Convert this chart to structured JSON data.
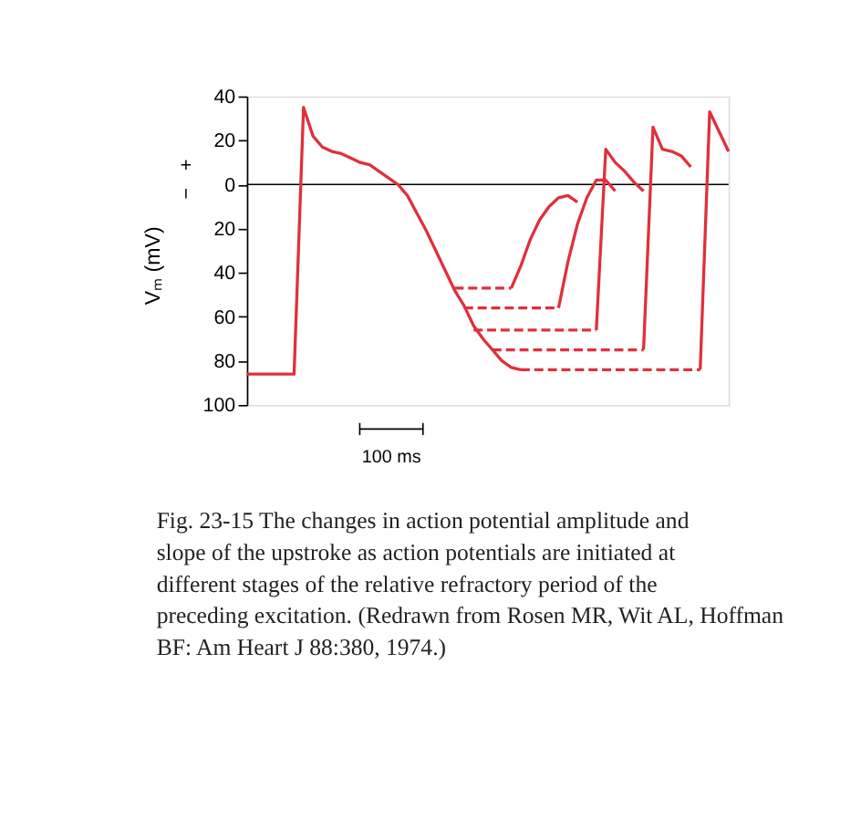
{
  "chart_data": {
    "type": "line",
    "ylabel": "Vₘ (mV)",
    "ylim": [
      -100,
      40
    ],
    "categories": [
      null,
      null,
      null,
      null,
      null,
      null,
      null,
      null,
      null,
      null,
      null,
      null,
      null,
      null,
      null,
      null,
      null,
      null,
      null,
      null,
      null,
      null,
      null,
      null,
      null,
      null,
      null,
      null,
      null,
      null,
      null,
      null,
      null,
      null,
      null,
      null,
      null,
      null,
      null,
      null,
      null,
      null,
      null,
      null,
      null,
      null,
      null,
      null,
      null,
      null,
      null,
      null
    ],
    "yticks": [
      40,
      20,
      0,
      {
        "value": -20,
        "label": "20"
      },
      {
        "value": -40,
        "label": "40"
      },
      {
        "value": -60,
        "label": "60"
      },
      {
        "value": -80,
        "label": "80"
      },
      {
        "value": -100,
        "label": "100"
      }
    ],
    "tick_labels": "y",
    "grid": false,
    "marker": "none",
    "ref_lines": [
      {
        "axis": "y",
        "value": 0,
        "color": "#000000"
      }
    ],
    "series": [
      {
        "color": "#e0303c",
        "line_style": "solid",
        "values": [
          -86,
          -86,
          -86,
          -86,
          -86,
          -86,
          35,
          22,
          17,
          15,
          14,
          12,
          10,
          9,
          6,
          3,
          0,
          -5,
          -13,
          -21,
          -30,
          -39,
          -48,
          -55,
          -64,
          -70,
          -75,
          -80,
          -83,
          -84,
          null,
          null,
          null,
          null,
          null,
          null,
          null,
          null,
          null,
          null,
          null,
          null,
          null,
          null,
          null,
          null,
          null,
          null,
          null,
          null,
          null,
          null
        ]
      },
      {
        "color": "#e0303c",
        "line_style": "dashed",
        "values": [
          null,
          null,
          null,
          null,
          null,
          null,
          null,
          null,
          null,
          null,
          null,
          null,
          null,
          null,
          null,
          null,
          null,
          null,
          null,
          null,
          null,
          null,
          -47,
          -47,
          -47,
          -47,
          -47,
          -47,
          -47,
          null,
          null,
          null,
          null,
          null,
          null,
          null,
          null,
          null,
          null,
          null,
          null,
          null,
          null,
          null,
          null,
          null,
          null,
          null,
          null,
          null,
          null,
          null
        ]
      },
      {
        "color": "#e0303c",
        "line_style": "dashed",
        "values": [
          null,
          null,
          null,
          null,
          null,
          null,
          null,
          null,
          null,
          null,
          null,
          null,
          null,
          null,
          null,
          null,
          null,
          null,
          null,
          null,
          null,
          null,
          null,
          -56,
          -56,
          -56,
          -56,
          -56,
          -56,
          -56,
          -56,
          -56,
          -56,
          -56,
          null,
          null,
          null,
          null,
          null,
          null,
          null,
          null,
          null,
          null,
          null,
          null,
          null,
          null,
          null,
          null,
          null,
          null
        ]
      },
      {
        "color": "#e0303c",
        "line_style": "dashed",
        "values": [
          null,
          null,
          null,
          null,
          null,
          null,
          null,
          null,
          null,
          null,
          null,
          null,
          null,
          null,
          null,
          null,
          null,
          null,
          null,
          null,
          null,
          null,
          null,
          null,
          -66,
          -66,
          -66,
          -66,
          -66,
          -66,
          -66,
          -66,
          -66,
          -66,
          -66,
          -66,
          -66,
          -66,
          null,
          null,
          null,
          null,
          null,
          null,
          null,
          null,
          null,
          null,
          null,
          null,
          null,
          null
        ]
      },
      {
        "color": "#e0303c",
        "line_style": "dashed",
        "values": [
          null,
          null,
          null,
          null,
          null,
          null,
          null,
          null,
          null,
          null,
          null,
          null,
          null,
          null,
          null,
          null,
          null,
          null,
          null,
          null,
          null,
          null,
          null,
          null,
          null,
          null,
          -75,
          -75,
          -75,
          -75,
          -75,
          -75,
          -75,
          -75,
          -75,
          -75,
          -75,
          -75,
          -75,
          -75,
          -75,
          -75,
          -75,
          null,
          null,
          null,
          null,
          null,
          null,
          null,
          null,
          null
        ]
      },
      {
        "color": "#e0303c",
        "line_style": "dashed",
        "values": [
          null,
          null,
          null,
          null,
          null,
          null,
          null,
          null,
          null,
          null,
          null,
          null,
          null,
          null,
          null,
          null,
          null,
          null,
          null,
          null,
          null,
          null,
          null,
          null,
          null,
          null,
          null,
          null,
          null,
          -84,
          -84,
          -84,
          -84,
          -84,
          -84,
          -84,
          -84,
          -84,
          -84,
          -84,
          -84,
          -84,
          -84,
          -84,
          -84,
          -84,
          -84,
          -84,
          -84,
          null,
          null,
          null
        ]
      },
      {
        "color": "#e0303c",
        "line_style": "solid",
        "values": [
          null,
          null,
          null,
          null,
          null,
          null,
          null,
          null,
          null,
          null,
          null,
          null,
          null,
          null,
          null,
          null,
          null,
          null,
          null,
          null,
          null,
          null,
          null,
          null,
          null,
          null,
          null,
          null,
          -47,
          -37,
          -25,
          -16,
          -10,
          -6,
          -5,
          -8,
          null,
          null,
          null,
          null,
          null,
          null,
          null,
          null,
          null,
          null,
          null,
          null,
          null,
          null,
          null,
          null
        ]
      },
      {
        "color": "#e0303c",
        "line_style": "solid",
        "values": [
          null,
          null,
          null,
          null,
          null,
          null,
          null,
          null,
          null,
          null,
          null,
          null,
          null,
          null,
          null,
          null,
          null,
          null,
          null,
          null,
          null,
          null,
          null,
          null,
          null,
          null,
          null,
          null,
          null,
          null,
          null,
          null,
          null,
          -56,
          -35,
          -18,
          -6,
          2,
          2,
          -3,
          null,
          null,
          null,
          null,
          null,
          null,
          null,
          null,
          null,
          null,
          null,
          null
        ]
      },
      {
        "color": "#e0303c",
        "line_style": "solid",
        "values": [
          null,
          null,
          null,
          null,
          null,
          null,
          null,
          null,
          null,
          null,
          null,
          null,
          null,
          null,
          null,
          null,
          null,
          null,
          null,
          null,
          null,
          null,
          null,
          null,
          null,
          null,
          null,
          null,
          null,
          null,
          null,
          null,
          null,
          null,
          null,
          null,
          null,
          -66,
          16,
          10,
          6,
          1,
          -3,
          null,
          null,
          null,
          null,
          null,
          null,
          null,
          null,
          null
        ]
      },
      {
        "color": "#e0303c",
        "line_style": "solid",
        "values": [
          null,
          null,
          null,
          null,
          null,
          null,
          null,
          null,
          null,
          null,
          null,
          null,
          null,
          null,
          null,
          null,
          null,
          null,
          null,
          null,
          null,
          null,
          null,
          null,
          null,
          null,
          null,
          null,
          null,
          null,
          null,
          null,
          null,
          null,
          null,
          null,
          null,
          null,
          null,
          null,
          null,
          null,
          -75,
          26,
          16,
          15,
          13,
          8,
          null,
          null,
          null,
          null
        ]
      },
      {
        "color": "#e0303c",
        "line_style": "solid",
        "values": [
          null,
          null,
          null,
          null,
          null,
          null,
          null,
          null,
          null,
          null,
          null,
          null,
          null,
          null,
          null,
          null,
          null,
          null,
          null,
          null,
          null,
          null,
          null,
          null,
          null,
          null,
          null,
          null,
          null,
          null,
          null,
          null,
          null,
          null,
          null,
          null,
          null,
          null,
          null,
          null,
          null,
          null,
          null,
          null,
          null,
          null,
          null,
          null,
          -84,
          33,
          24,
          15
        ]
      }
    ],
    "annotations": [
      "+",
      "−",
      "100 ms",
      "Fig. 23-15   The changes in action potential amplitude and slope of the upstroke as action potentials are initiated at different stages of the relative refractory period of the preceding excitation. (Redrawn from Rosen MR, Wit AL, Hoffman BF: Am Heart J 88:380, 1974.)"
    ]
  }
}
